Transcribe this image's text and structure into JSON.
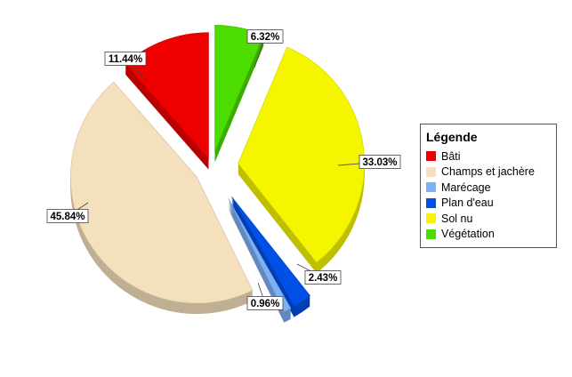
{
  "chart_data": {
    "type": "pie",
    "exploded": true,
    "legend_title": "Légende",
    "legend_position": "right",
    "slices": [
      {
        "label": "Bâti",
        "value": 11.44,
        "display": "11.44%",
        "color": "#ee0000"
      },
      {
        "label": "Champs et jachère",
        "value": 45.84,
        "display": "45.84%",
        "color": "#f5e0bd"
      },
      {
        "label": "Marécage",
        "value": 0.96,
        "display": "0.96%",
        "color": "#7eb0f5"
      },
      {
        "label": "Plan d'eau",
        "value": 2.43,
        "display": "2.43%",
        "color": "#0050e6"
      },
      {
        "label": "Sol nu",
        "value": 33.03,
        "display": "33.03%",
        "color": "#f5f500"
      },
      {
        "label": "Végétation",
        "value": 6.32,
        "display": "6.32%",
        "color": "#4cdc00"
      }
    ]
  }
}
